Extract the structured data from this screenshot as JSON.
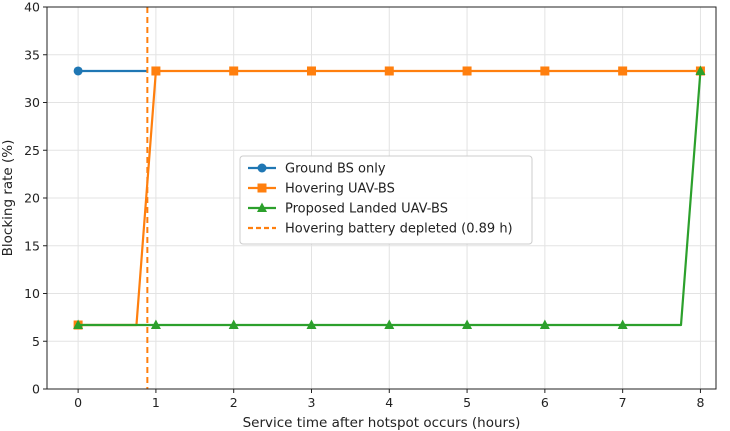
{
  "chart_data": {
    "type": "line",
    "title": "",
    "xlabel": "Service time after hotspot occurs (hours)",
    "ylabel": "Blocking rate (%)",
    "xlim": [
      -0.4,
      8.2
    ],
    "ylim": [
      0,
      40
    ],
    "xticks": [
      0,
      1,
      2,
      3,
      4,
      5,
      6,
      7,
      8
    ],
    "yticks": [
      0,
      5,
      10,
      15,
      20,
      25,
      30,
      35,
      40
    ],
    "grid": true,
    "legend_position": "center",
    "series": [
      {
        "name": "Ground BS only",
        "color": "#1f77b4",
        "marker": "circle",
        "x": [
          0,
          0.89
        ],
        "y": [
          33.3,
          33.3
        ]
      },
      {
        "name": "Hovering UAV-BS",
        "color": "#ff7f0e",
        "marker": "square",
        "x": [
          0,
          0.75,
          1,
          2,
          3,
          4,
          5,
          6,
          7,
          8
        ],
        "y": [
          6.7,
          6.7,
          33.3,
          33.3,
          33.3,
          33.3,
          33.3,
          33.3,
          33.3,
          33.3
        ],
        "marker_x": [
          0,
          1,
          2,
          3,
          4,
          5,
          6,
          7,
          8
        ]
      },
      {
        "name": "Proposed Landed UAV-BS",
        "color": "#2ca02c",
        "marker": "triangle",
        "x": [
          0,
          1,
          2,
          3,
          4,
          5,
          6,
          7,
          7.75,
          8
        ],
        "y": [
          6.7,
          6.7,
          6.7,
          6.7,
          6.7,
          6.7,
          6.7,
          6.7,
          6.7,
          33.3
        ],
        "marker_x": [
          0,
          1,
          2,
          3,
          4,
          5,
          6,
          7,
          8
        ]
      }
    ],
    "annotations": [
      {
        "type": "vline",
        "name": "Hovering battery depleted (0.89 h)",
        "x": 0.89,
        "color": "#ff7f0e",
        "style": "dashed"
      }
    ]
  }
}
